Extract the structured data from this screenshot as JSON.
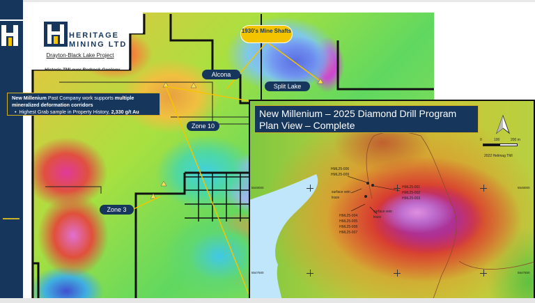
{
  "brand": {
    "name_line1": "HERITAGE",
    "name_line2": "MINING LTD",
    "colors": {
      "navy": "#16365c",
      "gold": "#f5c400"
    }
  },
  "slide": {
    "project_title": "Drayton-Black Lake Project",
    "subtitle": "Historic TMI over Bedrock Geology"
  },
  "callout": {
    "lead_bold": "New Millenium",
    "lead_text": " Past Company work supports ",
    "lead_bold2": "multiple mineralized deformation corridors",
    "bullet_text": "Highest Grab sample in Property History, ",
    "bullet_bold": "2,330 g/t Au"
  },
  "map_labels": {
    "mine_shafts": "1930's Mine Shafts",
    "alcona": "Alcona",
    "split_lake": "Split Lake",
    "zone10": "Zone 10",
    "zone3": "Zone 3"
  },
  "inset": {
    "title_line1": "New Millenium – 2025  Diamond Drill Program",
    "title_line2": "Plan View – Complete",
    "scale_labels": [
      "0",
      "100",
      "200 m"
    ],
    "data_source": "2022 Helimag TMI",
    "drill_groups": [
      [
        "HML25-006",
        "HML25-009"
      ],
      [
        "HML25-001",
        "HML25-002",
        "HML25-003"
      ],
      [
        "HML25-004",
        "HML25-005",
        "HML25-008",
        "HML25-007"
      ]
    ],
    "vein_label": "surface vein trace",
    "northings": [
      "5548000",
      "5547500"
    ],
    "eastings": [
      "595000",
      "595500",
      "596000"
    ]
  }
}
